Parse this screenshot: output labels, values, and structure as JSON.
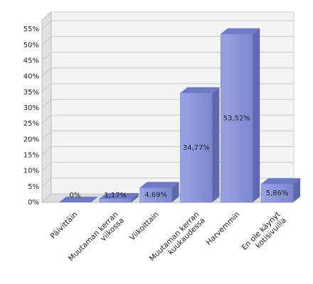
{
  "chart_data": {
    "type": "bar3d",
    "categories": [
      "Päivittäin",
      "Muutaman kerran viikossa",
      "Viikoittain",
      "Muutaman kerran kuukaudessa",
      "Harvemmin",
      "En ole käynyt kotisivuilla"
    ],
    "values": [
      0,
      1.17,
      4.69,
      34.77,
      53.52,
      5.86
    ],
    "value_labels": [
      "0%",
      "1,17%",
      "4,69%",
      "34,77%",
      "53,52%",
      "5,86%"
    ],
    "color": "#8793d9",
    "ylim": [
      0,
      60
    ],
    "yticks": [
      {
        "value": 0,
        "label": "0%"
      },
      {
        "value": 5,
        "label": "5%"
      },
      {
        "value": 10,
        "label": "10%"
      },
      {
        "value": 15,
        "label": "15%"
      },
      {
        "value": 20,
        "label": "20%"
      },
      {
        "value": 25,
        "label": "25%"
      },
      {
        "value": 30,
        "label": "30%"
      },
      {
        "value": 35,
        "label": "35%"
      },
      {
        "value": 40,
        "label": "40%"
      },
      {
        "value": 45,
        "label": "45%"
      },
      {
        "value": 50,
        "label": "50%"
      },
      {
        "value": 55,
        "label": "55%"
      }
    ],
    "grid": true
  }
}
